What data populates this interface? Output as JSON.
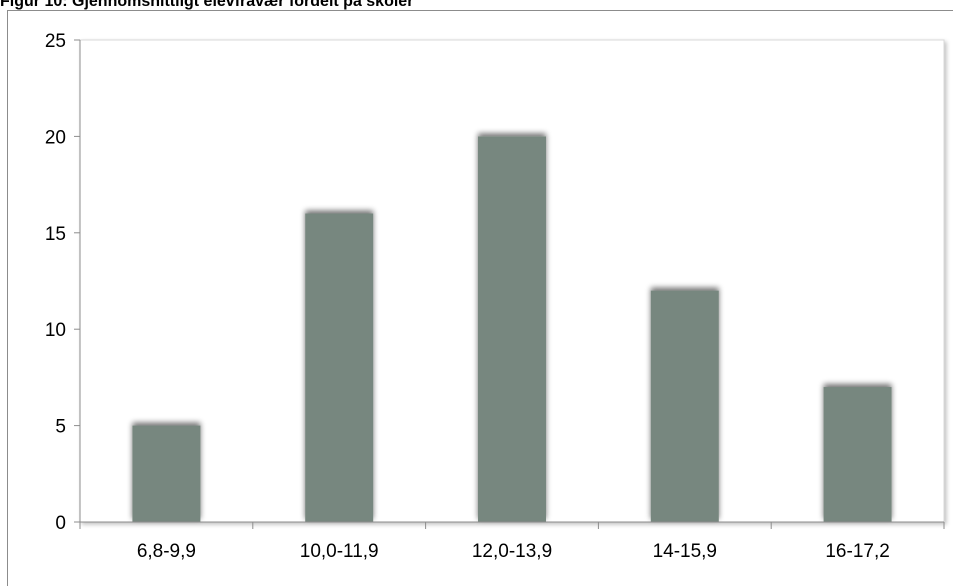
{
  "caption": "Figur 10: Gjennomsnittligt elevfravær fordelt på skoler",
  "colors": {
    "bar": "#77877f",
    "axis": "#8c8c8c",
    "plot_border": "#d9d9d9"
  },
  "chart_data": {
    "type": "bar",
    "title": "",
    "xlabel": "",
    "ylabel": "",
    "categories": [
      "6,8-9,9",
      "10,0-11,9",
      "12,0-13,9",
      "14-15,9",
      "16-17,2"
    ],
    "values": [
      5,
      16,
      20,
      12,
      7
    ],
    "ylim": [
      0,
      25
    ],
    "yticks": [
      0,
      5,
      10,
      15,
      20,
      25
    ],
    "grid": false,
    "legend": "none"
  }
}
